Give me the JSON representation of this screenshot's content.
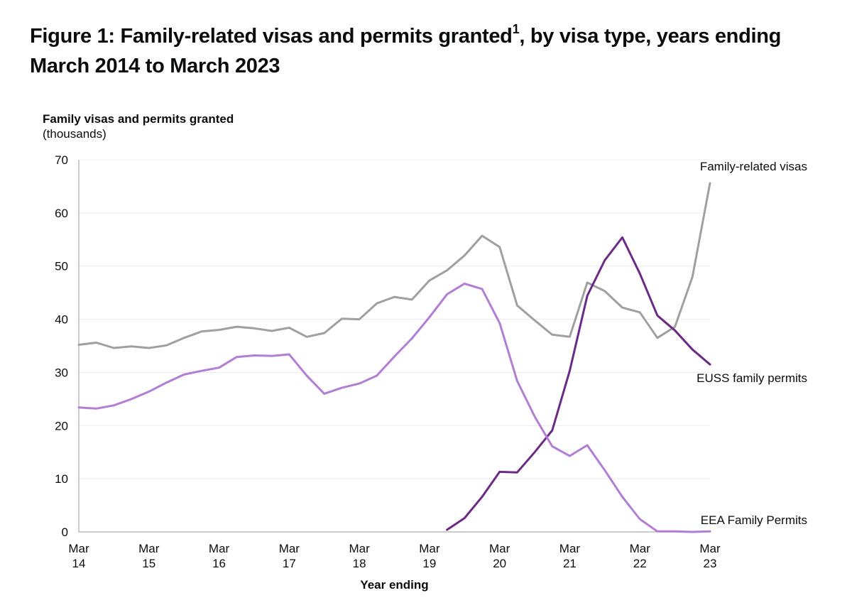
{
  "figure": {
    "title_main": "Figure 1: Family-related visas and permits granted",
    "title_sup": "1",
    "title_rest": ", by visa type, years ending March 2014 to March 2023"
  },
  "chart_data": {
    "type": "line",
    "title": "Figure 1: Family-related visas and permits granted1, by visa type, years ending March 2014 to March 2023",
    "ylabel": "Family visas and permits granted",
    "ylabel_unit": "(thousands)",
    "xlabel": "Year ending",
    "ylim": [
      0,
      70
    ],
    "yticks": [
      0,
      10,
      20,
      30,
      40,
      50,
      60,
      70
    ],
    "grid": true,
    "legend": "direct labels at right end of lines",
    "x": [
      "Mar 14",
      "Jun 14",
      "Sep 14",
      "Dec 14",
      "Mar 15",
      "Jun 15",
      "Sep 15",
      "Dec 15",
      "Mar 16",
      "Jun 16",
      "Sep 16",
      "Dec 16",
      "Mar 17",
      "Jun 17",
      "Sep 17",
      "Dec 17",
      "Mar 18",
      "Jun 18",
      "Sep 18",
      "Dec 18",
      "Mar 19",
      "Jun 19",
      "Sep 19",
      "Dec 19",
      "Mar 20",
      "Jun 20",
      "Sep 20",
      "Dec 20",
      "Mar 21",
      "Jun 21",
      "Sep 21",
      "Dec 21",
      "Mar 22",
      "Jun 22",
      "Sep 22",
      "Dec 22",
      "Mar 23"
    ],
    "xticks": [
      {
        "line1": "Mar",
        "line2": "14",
        "index": 0
      },
      {
        "line1": "Mar",
        "line2": "15",
        "index": 4
      },
      {
        "line1": "Mar",
        "line2": "16",
        "index": 8
      },
      {
        "line1": "Mar",
        "line2": "17",
        "index": 12
      },
      {
        "line1": "Mar",
        "line2": "18",
        "index": 16
      },
      {
        "line1": "Mar",
        "line2": "19",
        "index": 20
      },
      {
        "line1": "Mar",
        "line2": "20",
        "index": 24
      },
      {
        "line1": "Mar",
        "line2": "21",
        "index": 28
      },
      {
        "line1": "Mar",
        "line2": "22",
        "index": 32
      },
      {
        "line1": "Mar",
        "line2": "23",
        "index": 36
      }
    ],
    "series": [
      {
        "name": "Family-related visas",
        "color": "#a0a0a0",
        "label_anchor": "end",
        "label_offset": "above",
        "values": [
          35.2,
          35.6,
          34.6,
          34.9,
          34.6,
          35.1,
          36.5,
          37.7,
          38.0,
          38.6,
          38.3,
          37.8,
          38.4,
          36.7,
          37.4,
          40.1,
          40.0,
          43.0,
          44.2,
          43.7,
          47.3,
          49.2,
          52.0,
          55.7,
          53.6,
          42.6,
          39.8,
          37.1,
          36.7,
          46.9,
          45.3,
          42.2,
          41.3,
          36.5,
          38.6,
          48.0,
          65.6
        ]
      },
      {
        "name": "EUSS family permits",
        "color": "#6a2a85",
        "label_anchor": "end",
        "label_offset": "below",
        "values": [
          null,
          null,
          null,
          null,
          null,
          null,
          null,
          null,
          null,
          null,
          null,
          null,
          null,
          null,
          null,
          null,
          null,
          null,
          null,
          null,
          null,
          0.4,
          2.6,
          6.6,
          11.3,
          11.2,
          15.0,
          19.1,
          30.3,
          44.4,
          51.1,
          55.4,
          48.6,
          40.7,
          37.9,
          34.3,
          31.5
        ]
      },
      {
        "name": "EEA Family Permits",
        "color": "#b27dd4",
        "label_anchor": "end",
        "label_offset": "above-axis",
        "values": [
          23.4,
          23.2,
          23.8,
          25.0,
          26.4,
          28.1,
          29.6,
          30.3,
          30.9,
          32.9,
          33.2,
          33.1,
          33.4,
          29.4,
          26.0,
          27.1,
          27.9,
          29.4,
          33.0,
          36.4,
          40.4,
          44.7,
          46.7,
          45.7,
          39.3,
          28.4,
          21.7,
          16.1,
          14.3,
          16.3,
          11.6,
          6.6,
          2.4,
          0.1,
          0.1,
          0.0,
          0.1
        ]
      }
    ]
  }
}
